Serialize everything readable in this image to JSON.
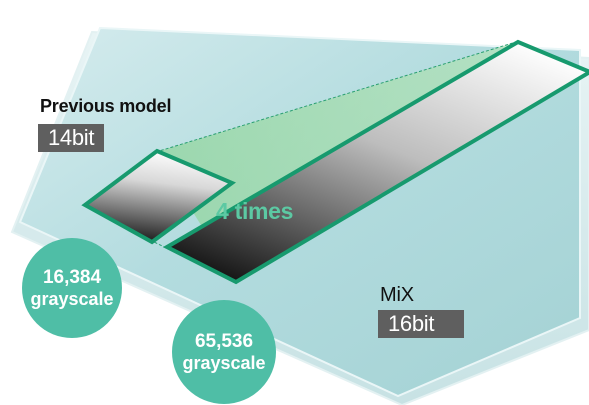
{
  "previous": {
    "title": "Previous model",
    "bit_label": "14bit",
    "grayscale_count": "16,384",
    "grayscale_word": "grayscale"
  },
  "mix": {
    "title": "MiX",
    "bit_label": "16bit",
    "grayscale_count": "65,536",
    "grayscale_word": "grayscale"
  },
  "comparison": {
    "ratio_label": "4 times"
  },
  "colors": {
    "accent_green": "#4fbea6",
    "ratio_text": "#5cc9a3",
    "badge_bg": "#5f5f5f",
    "frame_border": "#179a6e"
  }
}
